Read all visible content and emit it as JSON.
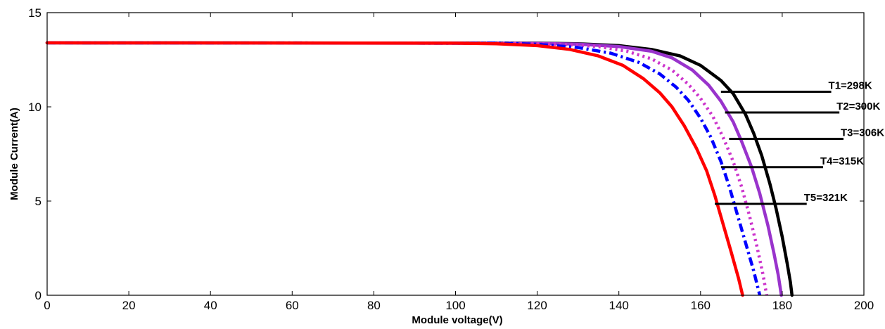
{
  "chart_data": {
    "type": "line",
    "title": "",
    "xlabel": "Module voltage(V)",
    "ylabel": "Module Current(A)",
    "xlim": [
      0,
      200
    ],
    "ylim": [
      0,
      15
    ],
    "xticks": [
      "0",
      "20",
      "40",
      "60",
      "80",
      "100",
      "120",
      "140",
      "160",
      "180",
      "200"
    ],
    "yticks": [
      "0",
      "5",
      "10",
      "15"
    ],
    "grid": false,
    "series": [
      {
        "name": "T1=298K",
        "color": "#000000",
        "dash": "solid",
        "points": [
          [
            0,
            13.4
          ],
          [
            120,
            13.38
          ],
          [
            130,
            13.35
          ],
          [
            140,
            13.25
          ],
          [
            148,
            13.05
          ],
          [
            155,
            12.7
          ],
          [
            160,
            12.2
          ],
          [
            165,
            11.4
          ],
          [
            168,
            10.7
          ],
          [
            171,
            9.6
          ],
          [
            173,
            8.6
          ],
          [
            175,
            7.4
          ],
          [
            177,
            5.9
          ],
          [
            178.5,
            4.6
          ],
          [
            180,
            3.1
          ],
          [
            181.2,
            1.7
          ],
          [
            182,
            0.7
          ],
          [
            182.4,
            0
          ]
        ]
      },
      {
        "name": "T2=300K",
        "color": "#9933cc",
        "dash": "solid",
        "points": [
          [
            0,
            13.4
          ],
          [
            120,
            13.37
          ],
          [
            130,
            13.33
          ],
          [
            140,
            13.2
          ],
          [
            148,
            12.95
          ],
          [
            153,
            12.6
          ],
          [
            158,
            11.95
          ],
          [
            162,
            11.15
          ],
          [
            165,
            10.3
          ],
          [
            168,
            9.2
          ],
          [
            170,
            8.2
          ],
          [
            172.5,
            6.8
          ],
          [
            174.5,
            5.4
          ],
          [
            176.5,
            3.7
          ],
          [
            178,
            2.2
          ],
          [
            179,
            1.1
          ],
          [
            179.8,
            0
          ]
        ]
      },
      {
        "name": "T3=306K",
        "color": "#cc33cc",
        "dash": "dotted",
        "points": [
          [
            0,
            13.4
          ],
          [
            115,
            13.38
          ],
          [
            125,
            13.33
          ],
          [
            135,
            13.2
          ],
          [
            142,
            12.95
          ],
          [
            148,
            12.55
          ],
          [
            153,
            11.95
          ],
          [
            157,
            11.2
          ],
          [
            160,
            10.45
          ],
          [
            163,
            9.5
          ],
          [
            165.5,
            8.4
          ],
          [
            168,
            7.1
          ],
          [
            170,
            5.8
          ],
          [
            172,
            4.2
          ],
          [
            173.8,
            2.6
          ],
          [
            175.3,
            1.1
          ],
          [
            176.2,
            0
          ]
        ]
      },
      {
        "name": "T4=315K",
        "color": "#0000ff",
        "dash": "dashdot",
        "points": [
          [
            0,
            13.4
          ],
          [
            110,
            13.38
          ],
          [
            120,
            13.32
          ],
          [
            130,
            13.15
          ],
          [
            138,
            12.85
          ],
          [
            145,
            12.35
          ],
          [
            150,
            11.75
          ],
          [
            154,
            11.05
          ],
          [
            157,
            10.35
          ],
          [
            160,
            9.4
          ],
          [
            162.5,
            8.4
          ],
          [
            165,
            7.1
          ],
          [
            167,
            5.8
          ],
          [
            169,
            4.3
          ],
          [
            171,
            2.8
          ],
          [
            173,
            1.3
          ],
          [
            174.5,
            0
          ]
        ]
      },
      {
        "name": "T5=321K",
        "color": "#ff0000",
        "dash": "solid",
        "points": [
          [
            0,
            13.4
          ],
          [
            100,
            13.38
          ],
          [
            110,
            13.35
          ],
          [
            120,
            13.25
          ],
          [
            128,
            13.05
          ],
          [
            135,
            12.7
          ],
          [
            141,
            12.2
          ],
          [
            146,
            11.5
          ],
          [
            150,
            10.75
          ],
          [
            153,
            10.0
          ],
          [
            156,
            9.0
          ],
          [
            159,
            7.8
          ],
          [
            161.5,
            6.6
          ],
          [
            163.5,
            5.3
          ],
          [
            165.5,
            3.8
          ],
          [
            167.5,
            2.3
          ],
          [
            169.3,
            0.9
          ],
          [
            170.3,
            0
          ]
        ]
      }
    ],
    "annotations": [
      {
        "text": "T1=298K",
        "x_start": 165,
        "x_end": 192,
        "y": 10.8
      },
      {
        "text": "T2=300K",
        "x_start": 166,
        "x_end": 194,
        "y": 9.7
      },
      {
        "text": "T3=306K",
        "x_start": 167,
        "x_end": 195,
        "y": 8.3
      },
      {
        "text": "T4=315K",
        "x_start": 165,
        "x_end": 190,
        "y": 6.8
      },
      {
        "text": "T5=321K",
        "x_start": 163.5,
        "x_end": 186,
        "y": 4.85
      }
    ]
  }
}
